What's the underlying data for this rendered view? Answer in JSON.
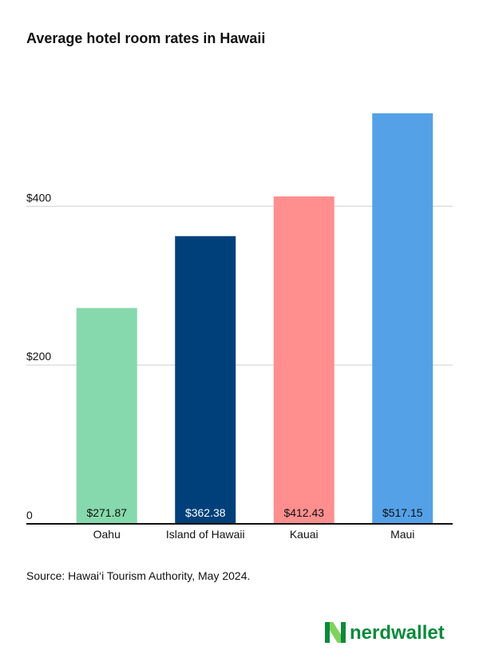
{
  "chart_data": {
    "type": "bar",
    "title": "Average hotel room rates in Hawaii",
    "categories": [
      "Oahu",
      "Island of Hawaii",
      "Kauai",
      "Maui"
    ],
    "values": [
      271.87,
      362.38,
      412.43,
      517.15
    ],
    "value_labels": [
      "$271.87",
      "$362.38",
      "$412.43",
      "$517.15"
    ],
    "colors": [
      "#86d9ac",
      "#00407a",
      "#ff8f8f",
      "#54a1e8"
    ],
    "ylim": [
      0,
      520
    ],
    "yticks": [
      0,
      {
        "value": 200,
        "label": "$200"
      },
      {
        "value": 400,
        "label": "$400"
      }
    ],
    "grid": true,
    "source": "Source: Hawai‘i Tourism Authority, May 2024."
  },
  "logo": "nerdwallet"
}
